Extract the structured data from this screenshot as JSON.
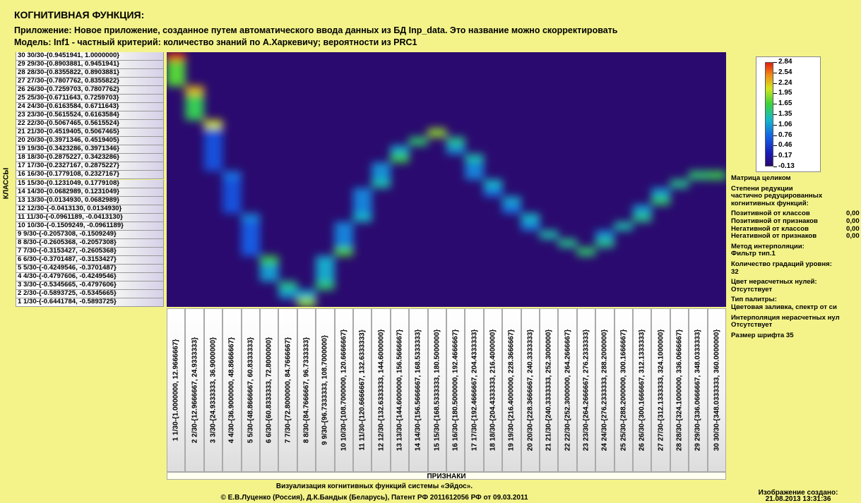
{
  "header": {
    "title": "КОГНИТИВНАЯ ФУНКЦИЯ:",
    "app_line": "Приложение: Новое приложение, созданное путем автоматического ввода данных из БД Inp_data. Это название можно скорректировать",
    "model_line": "Модель: Inf1 - частный критерий: количество знаний по А.Харкевичу; вероятности из PRC1"
  },
  "chart_data": {
    "type": "heatmap",
    "title": "КОГНИТИВНАЯ ФУНКЦИЯ:",
    "ylabel": "КЛАССЫ",
    "xlabel": "ПРИЗНАКИ",
    "row_labels": [
      "30 30/30-{0.9451941, 1.0000000}",
      "29 29/30-{0.8903881, 0.9451941}",
      "28 28/30-{0.8355822, 0.8903881}",
      "27 27/30-{0.7807762, 0.8355822}",
      "26 26/30-{0.7259703, 0.7807762}",
      "25 25/30-{0.6711643, 0.7259703}",
      "24 24/30-{0.6163584, 0.6711643}",
      "23 23/30-{0.5615524, 0.6163584}",
      "22 22/30-{0.5067465, 0.5615524}",
      "21 21/30-{0.4519405, 0.5067465}",
      "20 20/30-{0.3971346, 0.4519405}",
      "19 19/30-{0.3423286, 0.3971346}",
      "18 18/30-{0.2875227, 0.3423286}",
      "17 17/30-{0.2327167, 0.2875227}",
      "16 16/30-{0.1779108, 0.2327167}",
      "15 15/30-{0.1231049, 0.1779108}",
      "14 14/30-{0.0682989, 0.1231049}",
      "13 13/30-{0.0134930, 0.0682989}",
      "12 12/30-{-0.0413130, 0.0134930}",
      "11 11/30-{-0.0961189, -0.0413130}",
      "10 10/30-{-0.1509249, -0.0961189}",
      "9 9/30-{-0.2057308, -0.1509249}",
      "8 8/30-{-0.2605368, -0.2057308}",
      "7 7/30-{-0.3153427, -0.2605368}",
      "6 6/30-{-0.3701487, -0.3153427}",
      "5 5/30-{-0.4249546, -0.3701487}",
      "4 4/30-{-0.4797606, -0.4249546}",
      "3 3/30-{-0.5345665, -0.4797606}",
      "2 2/30-{-0.5893725, -0.5345665}",
      "1 1/30-{-0.6441784, -0.5893725}"
    ],
    "col_labels": [
      "1 1/30-{1.0000000, 12.9666667}",
      "2 2/30-{12.9666667, 24.9333333}",
      "3 3/30-{24.9333333, 36.9000000}",
      "4 4/30-{36.9000000, 48.8666667}",
      "5 5/30-{48.8666667, 60.8333333}",
      "6 6/30-{60.8333333, 72.8000000}",
      "7 7/30-{72.8000000, 84.7666667}",
      "8 8/30-{84.7666667, 96.7333333}",
      "9 9/30-{96.7333333, 108.7000000}",
      "10 10/30-{108.7000000, 120.6666667}",
      "11 11/30-{120.6666667, 132.6333333}",
      "12 12/30-{132.6333333, 144.6000000}",
      "13 13/30-{144.6000000, 156.5666667}",
      "14 14/30-{156.5666667, 168.5333333}",
      "15 15/30-{168.5333333, 180.5000000}",
      "16 16/30-{180.5000000, 192.4666667}",
      "17 17/30-{192.4666667, 204.4333333}",
      "18 18/30-{204.4333333, 216.4000000}",
      "19 19/30-{216.4000000, 228.3666667}",
      "20 20/30-{228.3666667, 240.3333333}",
      "21 21/30-{240.3333333, 252.3000000}",
      "22 22/30-{252.3000000, 264.2666667}",
      "23 23/30-{264.2666667, 276.2333333}",
      "24 24/30-{276.2333333, 288.2000000}",
      "25 25/30-{288.2000000, 300.1666667}",
      "26 26/30-{300.1666667, 312.1333333}",
      "27 27/30-{312.1333333, 324.1000000}",
      "28 28/30-{324.1000000, 336.0666667}",
      "29 29/30-{336.0666667, 348.0333333}",
      "30 30/30-{348.0333333, 360.0000000}"
    ],
    "peaks": [
      {
        "col": 1,
        "row": 30,
        "value": 2.84
      },
      {
        "col": 2,
        "row": 26,
        "value": 2.3
      },
      {
        "col": 3,
        "row": 22,
        "value": 2.1
      },
      {
        "col": 4,
        "row": 16,
        "value": 0.8
      },
      {
        "col": 5,
        "row": 11,
        "value": 0.9
      },
      {
        "col": 6,
        "row": 6,
        "value": 1.6
      },
      {
        "col": 7,
        "row": 3,
        "value": 1.4
      },
      {
        "col": 8,
        "row": 1,
        "value": 1.9
      },
      {
        "col": 9,
        "row": 3,
        "value": 1.5
      },
      {
        "col": 10,
        "row": 7,
        "value": 1.7
      },
      {
        "col": 11,
        "row": 11,
        "value": 1.2
      },
      {
        "col": 12,
        "row": 15,
        "value": 1.3
      },
      {
        "col": 13,
        "row": 18,
        "value": 1.6
      },
      {
        "col": 14,
        "row": 20,
        "value": 1.5
      },
      {
        "col": 15,
        "row": 21,
        "value": 1.9
      },
      {
        "col": 16,
        "row": 20,
        "value": 1.4
      },
      {
        "col": 17,
        "row": 18,
        "value": 1.3
      },
      {
        "col": 18,
        "row": 15,
        "value": 1.2
      },
      {
        "col": 19,
        "row": 13,
        "value": 1.1
      },
      {
        "col": 20,
        "row": 11,
        "value": 1.2
      },
      {
        "col": 21,
        "row": 9,
        "value": 1.3
      },
      {
        "col": 22,
        "row": 8,
        "value": 1.4
      },
      {
        "col": 23,
        "row": 7,
        "value": 1.5
      },
      {
        "col": 24,
        "row": 8,
        "value": 1.4
      },
      {
        "col": 25,
        "row": 10,
        "value": 1.3
      },
      {
        "col": 26,
        "row": 11,
        "value": 1.4
      },
      {
        "col": 27,
        "row": 13,
        "value": 1.5
      },
      {
        "col": 28,
        "row": 15,
        "value": 1.4
      },
      {
        "col": 29,
        "row": 16,
        "value": 1.5
      },
      {
        "col": 30,
        "row": 16,
        "value": 1.6
      }
    ],
    "colorbar": {
      "ticks": [
        "2.84",
        "2.54",
        "2.24",
        "1.95",
        "1.65",
        "1.35",
        "1.06",
        "0.76",
        "0.46",
        "0.17",
        "-0.13"
      ],
      "min": -0.13,
      "max": 2.84
    },
    "colors": {
      "background": "#2a0a6e",
      "low": "#1a1ab4",
      "mid": "#16b8c8",
      "midhigh": "#3cd23c",
      "high": "#d2e61e",
      "max": "#e02010"
    }
  },
  "side_panel": {
    "matrix": "Матрица целиком",
    "reduction_title_1": "Степени редукции",
    "reduction_title_2": "частично редуцированных",
    "reduction_title_3": "когнитивных функций:",
    "pos_classes": "Позитивной от классов",
    "pos_classes_val": "0,00",
    "pos_features": "Позитивной от признаков",
    "pos_features_val": "0,00",
    "neg_classes": "Негативной от классов",
    "neg_classes_val": "0,00",
    "neg_features": "Негативной от признаков",
    "neg_features_val": "0,00",
    "interp_method": "Метод интерполяции:",
    "interp_value": "Фильтр тип.1",
    "levels": "Количество градаций уровня:",
    "levels_value": "32",
    "zero_color": "Цвет нерасчетных нулей:",
    "zero_color_value": "Отсутствует",
    "palette_type": "Тип палитры:",
    "palette_value": "Цветовая заливка, спектр от си",
    "interp_zeros": "Интерполяция нерасчетных нул",
    "interp_zeros_value": "Отсутствует",
    "font_size": "Размер шрифта 35"
  },
  "footer": {
    "line1": "Визуализация когнитивных функций системы «Эйдос».",
    "line2": "© Е.В.Луценко (Россия), Д.К.Бандык (Беларусь), Патент РФ  2011612056 РФ от 09.03.2011",
    "created_label": "Изображение создано:",
    "created_value": "21.08.2013  13:31:36"
  }
}
